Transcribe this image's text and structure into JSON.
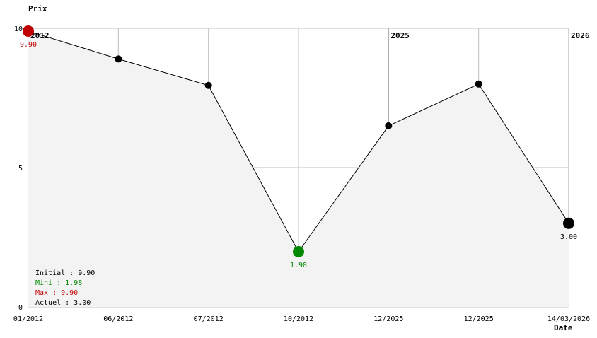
{
  "chart_data": {
    "type": "area",
    "ylabel": "Prix",
    "xlabel": "Date",
    "ylim": [
      0,
      10
    ],
    "yticks": [
      "0",
      "5",
      "10"
    ],
    "grid": true,
    "categories": [
      "01/2012",
      "06/2012",
      "07/2012",
      "10/2012",
      "12/2025",
      "12/2025",
      "14/03/2026"
    ],
    "values": [
      9.9,
      8.9,
      7.95,
      1.98,
      6.5,
      8.0,
      3.0
    ],
    "year_markers": [
      {
        "index": 0,
        "label": "2012"
      },
      {
        "index": 4,
        "label": "2025"
      },
      {
        "index": 6,
        "label": "2026"
      }
    ],
    "point_labels": [
      {
        "index": 0,
        "label": "9.90",
        "color": "#c00000"
      },
      {
        "index": 3,
        "label": "1.98",
        "color": "#008800"
      },
      {
        "index": 6,
        "label": "3.00",
        "color": "#000000"
      }
    ],
    "colors": {
      "line": "#000000",
      "fill": "#f3f3f3",
      "grid": "#c0c0c0",
      "max": "#c00000",
      "min": "#008800"
    },
    "legend": {
      "placement": "bottom-left",
      "items": [
        {
          "text": "Initial : 9.90",
          "color": "#000000"
        },
        {
          "text": "Mini : 1.98",
          "color": "#008800"
        },
        {
          "text": "Max : 9.90",
          "color": "#c00000"
        },
        {
          "text": "Actuel : 3.00",
          "color": "#000000"
        }
      ]
    }
  }
}
